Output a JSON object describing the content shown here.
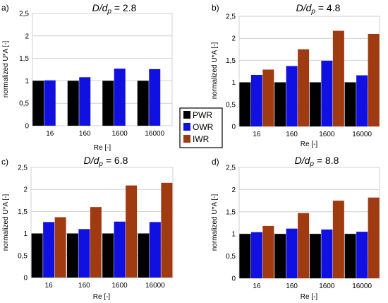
{
  "legend": [
    {
      "name": "PWR",
      "color": "#000000"
    },
    {
      "name": "OWR",
      "color": "#1010e0"
    },
    {
      "name": "IWR",
      "color": "#a03a10"
    }
  ],
  "chart_data": [
    {
      "type": "bar",
      "panel_label": "a)",
      "title": {
        "main": "D/d",
        "sub": "p",
        "value": " = 2.8"
      },
      "xlabel": "Re [-]",
      "ylabel": "normalized U*A [-]",
      "categories": [
        "16",
        "160",
        "1600",
        "16000"
      ],
      "ylim": [
        0,
        2.5
      ],
      "yticks": [
        "0",
        "0,5",
        "1",
        "1,5",
        "2",
        "2,5"
      ],
      "series": [
        {
          "name": "PWR",
          "values": [
            1.0,
            1.0,
            1.0,
            1.0
          ]
        },
        {
          "name": "OWR",
          "values": [
            1.01,
            1.08,
            1.27,
            1.26
          ]
        }
      ]
    },
    {
      "type": "bar",
      "panel_label": "b)",
      "title": {
        "main": "D/d",
        "sub": "p",
        "value": " = 4.8"
      },
      "xlabel": "Re [-]",
      "ylabel": "normalized U*A [-]",
      "categories": [
        "16",
        "160",
        "1600",
        "16000"
      ],
      "ylim": [
        0,
        2.5
      ],
      "yticks": [
        "0",
        "0,5",
        "1",
        "1,5",
        "2",
        "2,5"
      ],
      "series": [
        {
          "name": "PWR",
          "values": [
            1.0,
            1.0,
            1.0,
            1.0
          ]
        },
        {
          "name": "OWR",
          "values": [
            1.17,
            1.37,
            1.49,
            1.16
          ]
        },
        {
          "name": "IWR",
          "values": [
            1.29,
            1.75,
            2.17,
            2.1
          ]
        }
      ]
    },
    {
      "type": "bar",
      "panel_label": "c)",
      "title": {
        "main": "D/d",
        "sub": "p",
        "value": " = 6.8"
      },
      "xlabel": "Re [-]",
      "ylabel": "normalized U*A [-]",
      "categories": [
        "16",
        "160",
        "1600",
        "16000"
      ],
      "ylim": [
        0,
        2.5
      ],
      "yticks": [
        "0",
        "0,5",
        "1",
        "1,5",
        "2",
        "2,5"
      ],
      "series": [
        {
          "name": "PWR",
          "values": [
            1.0,
            1.0,
            1.0,
            1.0
          ]
        },
        {
          "name": "OWR",
          "values": [
            1.26,
            1.1,
            1.27,
            1.26
          ]
        },
        {
          "name": "IWR",
          "values": [
            1.37,
            1.6,
            2.09,
            2.15
          ]
        }
      ]
    },
    {
      "type": "bar",
      "panel_label": "d)",
      "title": {
        "main": "D/d",
        "sub": "p",
        "value": " = 8.8"
      },
      "xlabel": "Re [-]",
      "ylabel": "normalized U*A [-]",
      "categories": [
        "16",
        "160",
        "1600",
        "16000"
      ],
      "ylim": [
        0,
        2.5
      ],
      "yticks": [
        "0",
        "0,5",
        "1",
        "1,5",
        "2",
        "2,5"
      ],
      "series": [
        {
          "name": "PWR",
          "values": [
            1.0,
            1.0,
            1.0,
            1.0
          ]
        },
        {
          "name": "OWR",
          "values": [
            1.04,
            1.12,
            1.1,
            1.05
          ]
        },
        {
          "name": "IWR",
          "values": [
            1.18,
            1.47,
            1.75,
            1.82
          ]
        }
      ]
    }
  ]
}
